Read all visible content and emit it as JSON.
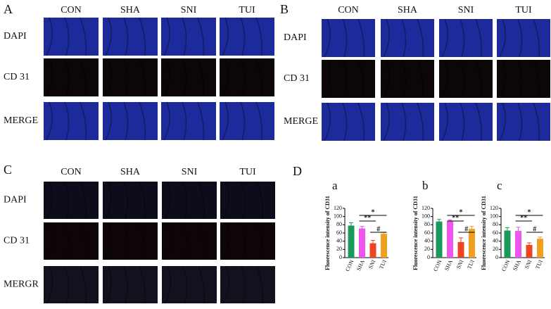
{
  "panels": [
    {
      "label": "A",
      "columns": [
        "CON",
        "SHA",
        "SNI",
        "TUI"
      ],
      "rows": [
        "DAPI",
        "CD 31",
        "MERGE"
      ]
    },
    {
      "label": "B",
      "columns": [
        "CON",
        "SHA",
        "SNI",
        "TUI"
      ],
      "rows": [
        "DAPI",
        "CD 31",
        "MERGE"
      ]
    },
    {
      "label": "C",
      "columns": [
        "CON",
        "SHA",
        "SNI",
        "TUI"
      ],
      "rows": [
        "DAPI",
        "CD 31",
        "MERGR"
      ]
    }
  ],
  "panel_d_label": "D",
  "chart_data": [
    {
      "type": "bar",
      "subtitle": "a",
      "y_label": "Fluorescence intensity of CD31",
      "categories": [
        "CON",
        "SHA",
        "SNI",
        "TUI"
      ],
      "values": [
        78,
        71,
        35,
        58
      ],
      "errors": [
        7,
        5,
        7,
        3
      ],
      "colors": [
        "#1a9a5a",
        "#ee55ee",
        "#ee4422",
        "#f0a020"
      ],
      "ylim": [
        0,
        120
      ],
      "yticks": [
        0,
        20,
        40,
        60,
        80,
        100,
        120
      ],
      "annotations": [
        "*",
        "**",
        "#"
      ]
    },
    {
      "type": "bar",
      "subtitle": "b",
      "y_label": "Fluorescence intensity of CD31",
      "categories": [
        "CON",
        "SHA",
        "SNI",
        "TUI"
      ],
      "values": [
        88,
        89,
        38,
        70
      ],
      "errors": [
        5,
        3,
        10,
        6
      ],
      "colors": [
        "#1a9a5a",
        "#ee55ee",
        "#ee4422",
        "#f0a020"
      ],
      "ylim": [
        0,
        120
      ],
      "yticks": [
        0,
        20,
        40,
        60,
        80,
        100,
        120
      ],
      "annotations": [
        "*",
        "**",
        "#"
      ]
    },
    {
      "type": "bar",
      "subtitle": "c",
      "y_label": "Fluorescence intensity of CD31",
      "categories": [
        "CON",
        "SHA",
        "SNI",
        "TUI"
      ],
      "values": [
        66,
        65,
        31,
        46
      ],
      "errors": [
        7,
        9,
        5,
        4
      ],
      "colors": [
        "#1a9a5a",
        "#ee55ee",
        "#ee4422",
        "#f0a020"
      ],
      "ylim": [
        0,
        120
      ],
      "yticks": [
        0,
        20,
        40,
        60,
        80,
        100,
        120
      ],
      "annotations": [
        "*",
        "**",
        "#"
      ]
    }
  ]
}
